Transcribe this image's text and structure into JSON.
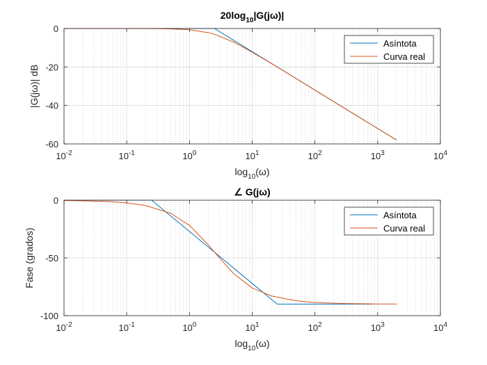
{
  "chart_data": [
    {
      "type": "line",
      "title": "20log10|G(jω)|",
      "title_parts": {
        "pre": "20log",
        "sub": "10",
        "post": "|G(jω)|"
      },
      "xlabel": "log10(ω)",
      "xlabel_parts": {
        "pre": "log",
        "sub": "10",
        "post": "(ω)"
      },
      "ylabel": "|G(jω)| dB",
      "x_scale": "log",
      "xlim": [
        0.01,
        10000
      ],
      "ylim": [
        -60,
        0
      ],
      "x_ticks": [
        {
          "base": "10",
          "exp": "-2"
        },
        {
          "base": "10",
          "exp": "-1"
        },
        {
          "base": "10",
          "exp": "0"
        },
        {
          "base": "10",
          "exp": "1"
        },
        {
          "base": "10",
          "exp": "2"
        },
        {
          "base": "10",
          "exp": "3"
        },
        {
          "base": "10",
          "exp": "4"
        }
      ],
      "y_ticks": [
        0,
        -20,
        -40,
        -60
      ],
      "grid": true,
      "legend_position": "top-right",
      "series": [
        {
          "name": "Asíntota",
          "color": "#0072BD",
          "x": [
            0.01,
            2.5,
            2000
          ],
          "y": [
            0,
            0,
            -58
          ]
        },
        {
          "name": "Curva real",
          "color": "#D95319",
          "x": [
            0.01,
            0.1,
            0.3,
            0.5,
            1,
            2,
            2.5,
            5,
            10,
            20,
            50,
            100,
            300,
            1000,
            2000
          ],
          "y": [
            0,
            -0.01,
            -0.06,
            -0.17,
            -0.64,
            -2.15,
            -3.01,
            -7.0,
            -12.3,
            -18.1,
            -26.0,
            -32.0,
            -41.6,
            -52.0,
            -58.0
          ]
        }
      ]
    },
    {
      "type": "line",
      "title": "∠ G(jω)",
      "xlabel": "log10(ω)",
      "xlabel_parts": {
        "pre": "log",
        "sub": "10",
        "post": "(ω)"
      },
      "ylabel": "Fase (grados)",
      "x_scale": "log",
      "xlim": [
        0.01,
        10000
      ],
      "ylim": [
        -100,
        0
      ],
      "x_ticks": [
        {
          "base": "10",
          "exp": "-2"
        },
        {
          "base": "10",
          "exp": "-1"
        },
        {
          "base": "10",
          "exp": "0"
        },
        {
          "base": "10",
          "exp": "1"
        },
        {
          "base": "10",
          "exp": "2"
        },
        {
          "base": "10",
          "exp": "3"
        },
        {
          "base": "10",
          "exp": "4"
        }
      ],
      "y_ticks": [
        0,
        -50,
        -100
      ],
      "grid": true,
      "legend_position": "top-right",
      "series": [
        {
          "name": "Asíntota",
          "color": "#0072BD",
          "x": [
            0.01,
            0.25,
            25,
            800
          ],
          "y": [
            0,
            0,
            -90,
            -90
          ]
        },
        {
          "name": "Curva real",
          "color": "#D95319",
          "x": [
            0.01,
            0.05,
            0.1,
            0.2,
            0.5,
            1,
            2,
            2.5,
            5,
            10,
            20,
            50,
            100,
            300,
            1000,
            2000
          ],
          "y": [
            -0.2,
            -1.1,
            -2.3,
            -4.6,
            -11.3,
            -21.8,
            -38.7,
            -45,
            -63.4,
            -76.0,
            -82.9,
            -87.1,
            -88.6,
            -89.5,
            -89.9,
            -89.9
          ]
        }
      ]
    }
  ]
}
